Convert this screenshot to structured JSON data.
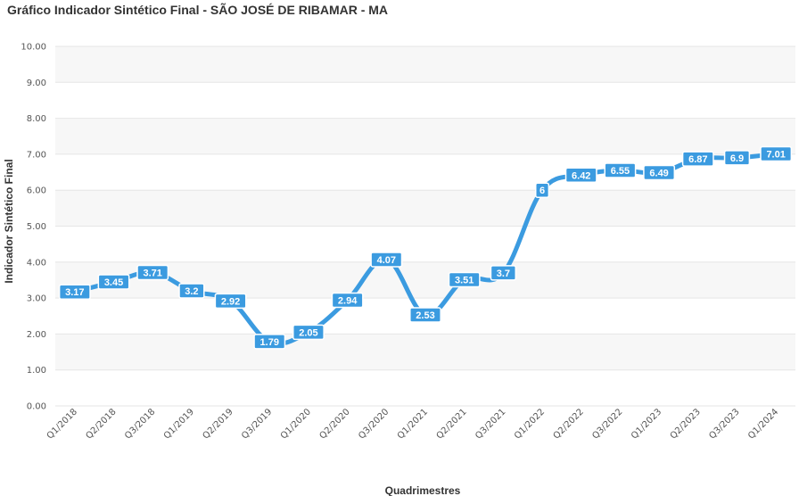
{
  "chart_data": {
    "type": "line",
    "title": "Gráfico Indicador Sintético Final - SÃO JOSÉ DE RIBAMAR - MA",
    "xlabel": "Quadrimestres",
    "ylabel": "Indicador Sintético Final",
    "ylim": [
      0,
      10
    ],
    "yticks": [
      "0.00",
      "1.00",
      "2.00",
      "3.00",
      "4.00",
      "5.00",
      "6.00",
      "7.00",
      "8.00",
      "9.00",
      "10.00"
    ],
    "grid": true,
    "legend": "none",
    "line_color": "#3b9be0",
    "categories": [
      "Q1/2018",
      "Q2/2018",
      "Q3/2018",
      "Q1/2019",
      "Q2/2019",
      "Q3/2019",
      "Q1/2020",
      "Q2/2020",
      "Q3/2020",
      "Q1/2021",
      "Q2/2021",
      "Q3/2021",
      "Q1/2022",
      "Q2/2022",
      "Q3/2022",
      "Q1/2023",
      "Q2/2023",
      "Q3/2023",
      "Q1/2024"
    ],
    "series": [
      {
        "values": [
          3.17,
          3.45,
          3.71,
          3.2,
          2.92,
          1.79,
          2.05,
          2.94,
          4.07,
          2.53,
          3.51,
          3.7,
          6,
          6.42,
          6.55,
          6.49,
          6.87,
          6.9,
          7.01
        ],
        "labels": [
          "3.17",
          "3.45",
          "3.71",
          "3.2",
          "2.92",
          "1.79",
          "2.05",
          "2.94",
          "4.07",
          "2.53",
          "3.51",
          "3.7",
          "6",
          "6.42",
          "6.55",
          "6.49",
          "6.87",
          "6.9",
          "7.01"
        ]
      }
    ]
  }
}
